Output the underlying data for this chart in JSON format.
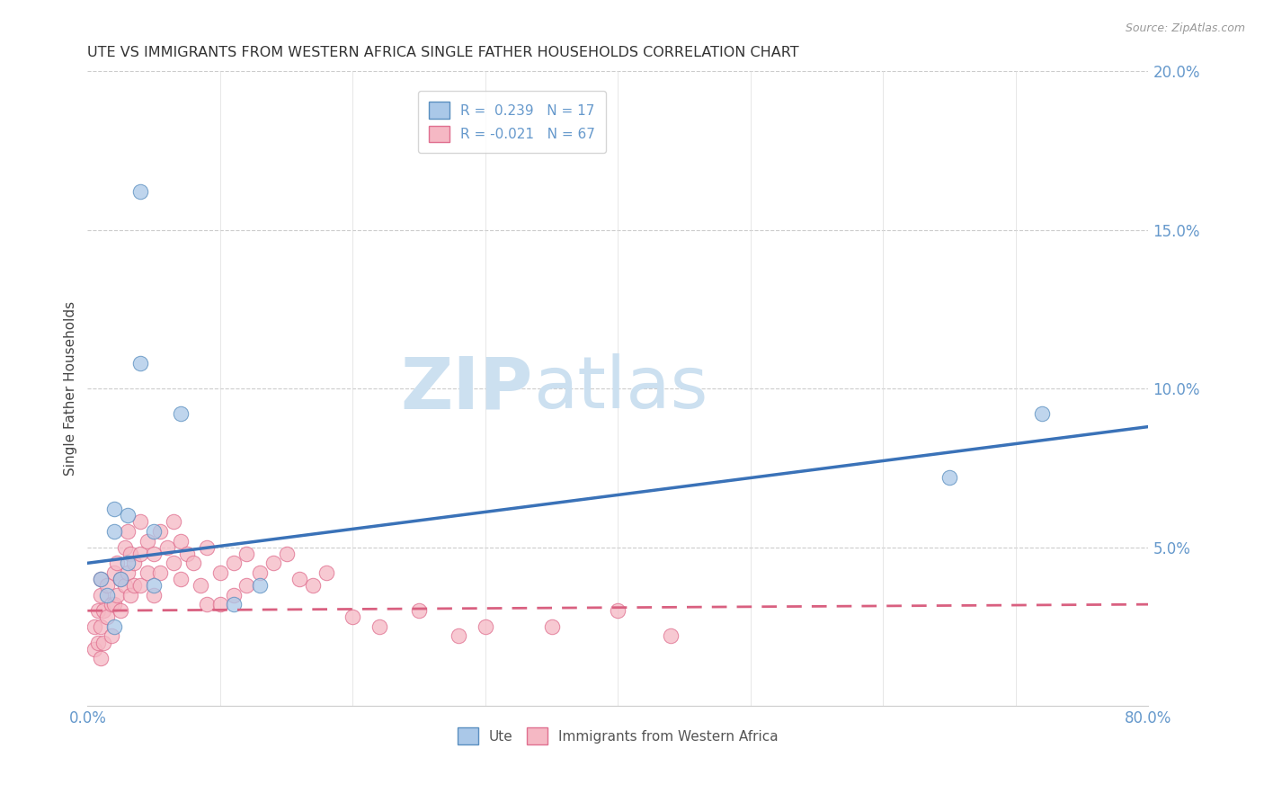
{
  "title": "UTE VS IMMIGRANTS FROM WESTERN AFRICA SINGLE FATHER HOUSEHOLDS CORRELATION CHART",
  "source": "Source: ZipAtlas.com",
  "ylabel": "Single Father Households",
  "xlim": [
    0.0,
    0.8
  ],
  "ylim": [
    0.0,
    0.2
  ],
  "legend_R_blue": "R =  0.239",
  "legend_N_blue": "N = 17",
  "legend_R_pink": "R = -0.021",
  "legend_N_pink": "N = 67",
  "legend_label_blue": "Ute",
  "legend_label_pink": "Immigrants from Western Africa",
  "blue_color": "#aac8e8",
  "pink_color": "#f5b8c4",
  "blue_edge_color": "#5a8fc0",
  "pink_edge_color": "#e07090",
  "blue_line_color": "#3a72b8",
  "pink_line_color": "#d96080",
  "title_color": "#333333",
  "axis_color": "#6699cc",
  "watermark_zip": "ZIP",
  "watermark_atlas": "atlas",
  "background_color": "#ffffff",
  "grid_color": "#cccccc",
  "blue_scatter_x": [
    0.04,
    0.02,
    0.04,
    0.01,
    0.02,
    0.015,
    0.03,
    0.025,
    0.05,
    0.03,
    0.72,
    0.65,
    0.05,
    0.02,
    0.13,
    0.11,
    0.07
  ],
  "blue_scatter_y": [
    0.162,
    0.062,
    0.108,
    0.04,
    0.055,
    0.035,
    0.06,
    0.04,
    0.055,
    0.045,
    0.092,
    0.072,
    0.038,
    0.025,
    0.038,
    0.032,
    0.092
  ],
  "pink_scatter_x": [
    0.005,
    0.005,
    0.008,
    0.008,
    0.01,
    0.01,
    0.01,
    0.01,
    0.012,
    0.012,
    0.015,
    0.015,
    0.018,
    0.018,
    0.02,
    0.02,
    0.022,
    0.022,
    0.025,
    0.025,
    0.028,
    0.028,
    0.03,
    0.03,
    0.032,
    0.032,
    0.035,
    0.035,
    0.04,
    0.04,
    0.04,
    0.045,
    0.045,
    0.05,
    0.05,
    0.055,
    0.055,
    0.06,
    0.065,
    0.065,
    0.07,
    0.07,
    0.075,
    0.08,
    0.085,
    0.09,
    0.09,
    0.1,
    0.1,
    0.11,
    0.11,
    0.12,
    0.12,
    0.13,
    0.14,
    0.15,
    0.16,
    0.17,
    0.18,
    0.2,
    0.22,
    0.25,
    0.28,
    0.3,
    0.35,
    0.4,
    0.44
  ],
  "pink_scatter_y": [
    0.025,
    0.018,
    0.03,
    0.02,
    0.035,
    0.025,
    0.04,
    0.015,
    0.03,
    0.02,
    0.038,
    0.028,
    0.032,
    0.022,
    0.042,
    0.032,
    0.045,
    0.035,
    0.04,
    0.03,
    0.05,
    0.038,
    0.055,
    0.042,
    0.048,
    0.035,
    0.045,
    0.038,
    0.058,
    0.048,
    0.038,
    0.052,
    0.042,
    0.048,
    0.035,
    0.055,
    0.042,
    0.05,
    0.058,
    0.045,
    0.052,
    0.04,
    0.048,
    0.045,
    0.038,
    0.05,
    0.032,
    0.042,
    0.032,
    0.045,
    0.035,
    0.048,
    0.038,
    0.042,
    0.045,
    0.048,
    0.04,
    0.038,
    0.042,
    0.028,
    0.025,
    0.03,
    0.022,
    0.025,
    0.025,
    0.03,
    0.022
  ],
  "blue_line_x0": 0.0,
  "blue_line_y0": 0.045,
  "blue_line_x1": 0.8,
  "blue_line_y1": 0.088,
  "pink_line_x0": 0.0,
  "pink_line_y0": 0.03,
  "pink_line_x1": 0.8,
  "pink_line_y1": 0.032
}
